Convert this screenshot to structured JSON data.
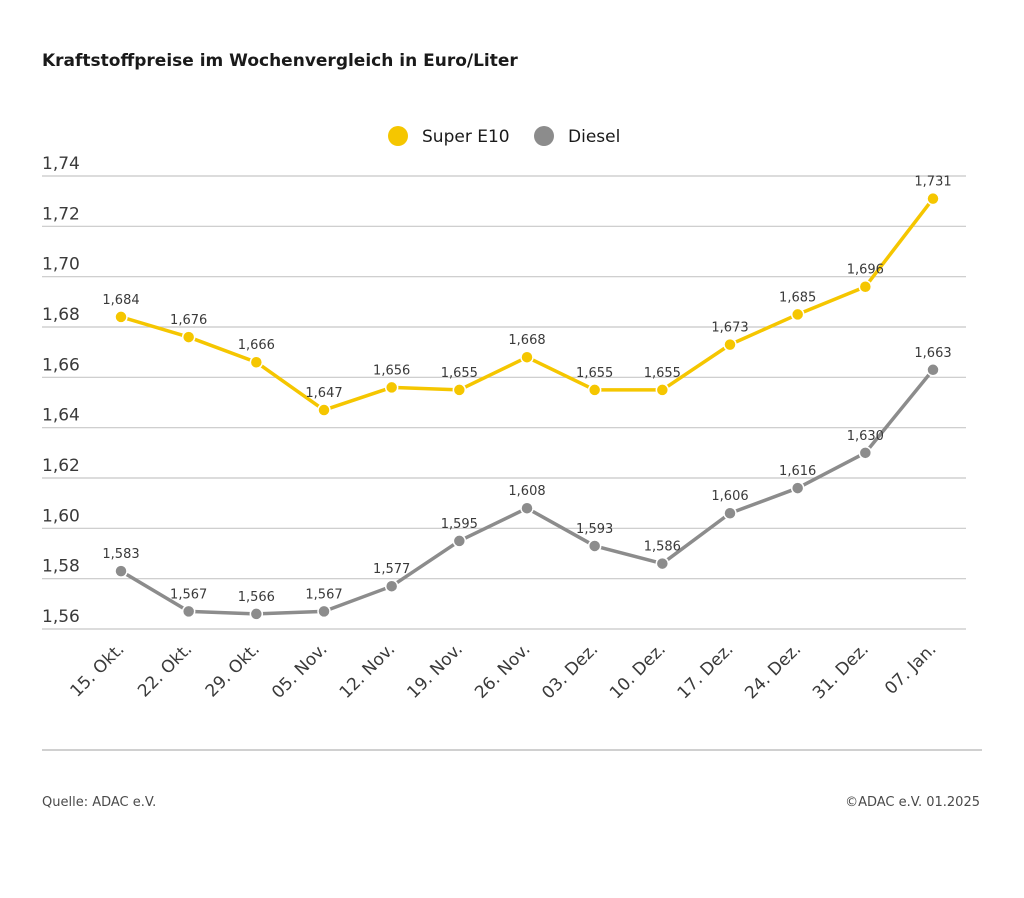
{
  "title": "Kraftstoffpreise im Wochenvergleich in Euro/Liter",
  "footer": {
    "source": "Quelle: ADAC e.V.",
    "copyright": "©ADAC e.V. 01.2025"
  },
  "colors": {
    "super_e10": "#f5c600",
    "diesel": "#8c8c8c",
    "grid": "#c8c8c8",
    "text": "#3a3a3a"
  },
  "chart_data": {
    "type": "line",
    "title": "Kraftstoffpreise im Wochenvergleich in Euro/Liter",
    "xlabel": "",
    "ylabel": "",
    "ylim": [
      1.56,
      1.74
    ],
    "yticks": [
      1.56,
      1.58,
      1.6,
      1.62,
      1.64,
      1.66,
      1.68,
      1.7,
      1.72,
      1.74
    ],
    "ytick_labels": [
      "1,56",
      "1,58",
      "1,60",
      "1,62",
      "1,64",
      "1,66",
      "1,68",
      "1,70",
      "1,72",
      "1,74"
    ],
    "grid": true,
    "legend_position": "top-center",
    "categories": [
      "15. Okt.",
      "22. Okt.",
      "29. Okt.",
      "05. Nov.",
      "12. Nov.",
      "19. Nov.",
      "26. Nov.",
      "03. Dez.",
      "10. Dez.",
      "17. Dez.",
      "24. Dez.",
      "31. Dez.",
      "07. Jan."
    ],
    "series": [
      {
        "name": "Super E10",
        "color": "#f5c600",
        "values": [
          1.684,
          1.676,
          1.666,
          1.647,
          1.656,
          1.655,
          1.668,
          1.655,
          1.655,
          1.673,
          1.685,
          1.696,
          1.731
        ],
        "labels": [
          "1,684",
          "1,676",
          "1,666",
          "1,647",
          "1,656",
          "1,655",
          "1,668",
          "1,655",
          "1,655",
          "1,673",
          "1,685",
          "1,696",
          "1,731"
        ]
      },
      {
        "name": "Diesel",
        "color": "#8c8c8c",
        "values": [
          1.583,
          1.567,
          1.566,
          1.567,
          1.577,
          1.595,
          1.608,
          1.593,
          1.586,
          1.606,
          1.616,
          1.63,
          1.663
        ],
        "labels": [
          "1,583",
          "1,567",
          "1,566",
          "1,567",
          "1,577",
          "1,595",
          "1,608",
          "1,593",
          "1,586",
          "1,606",
          "1,616",
          "1,630",
          "1,663"
        ]
      }
    ]
  }
}
